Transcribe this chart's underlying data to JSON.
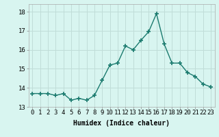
{
  "x": [
    0,
    1,
    2,
    3,
    4,
    5,
    6,
    7,
    8,
    9,
    10,
    11,
    12,
    13,
    14,
    15,
    16,
    17,
    18,
    19,
    20,
    21,
    22,
    23
  ],
  "y": [
    13.7,
    13.7,
    13.7,
    13.6,
    13.7,
    13.35,
    13.45,
    13.35,
    13.6,
    14.4,
    15.2,
    15.3,
    16.2,
    16.0,
    16.5,
    16.95,
    17.9,
    16.3,
    15.3,
    15.3,
    14.8,
    14.6,
    14.2,
    14.05
  ],
  "line_color": "#1a7a6e",
  "marker": "+",
  "marker_size": 4,
  "marker_linewidth": 1.2,
  "bg_color": "#d8f5f0",
  "grid_color": "#c0ddd8",
  "xlabel": "Humidex (Indice chaleur)",
  "xlim": [
    -0.5,
    23.5
  ],
  "ylim": [
    13.0,
    18.4
  ],
  "yticks": [
    13,
    14,
    15,
    16,
    17,
    18
  ],
  "xticks": [
    0,
    1,
    2,
    3,
    4,
    5,
    6,
    7,
    8,
    9,
    10,
    11,
    12,
    13,
    14,
    15,
    16,
    17,
    18,
    19,
    20,
    21,
    22,
    23
  ],
  "xlabel_fontsize": 7,
  "tick_fontsize": 6.5,
  "linewidth": 1.0
}
